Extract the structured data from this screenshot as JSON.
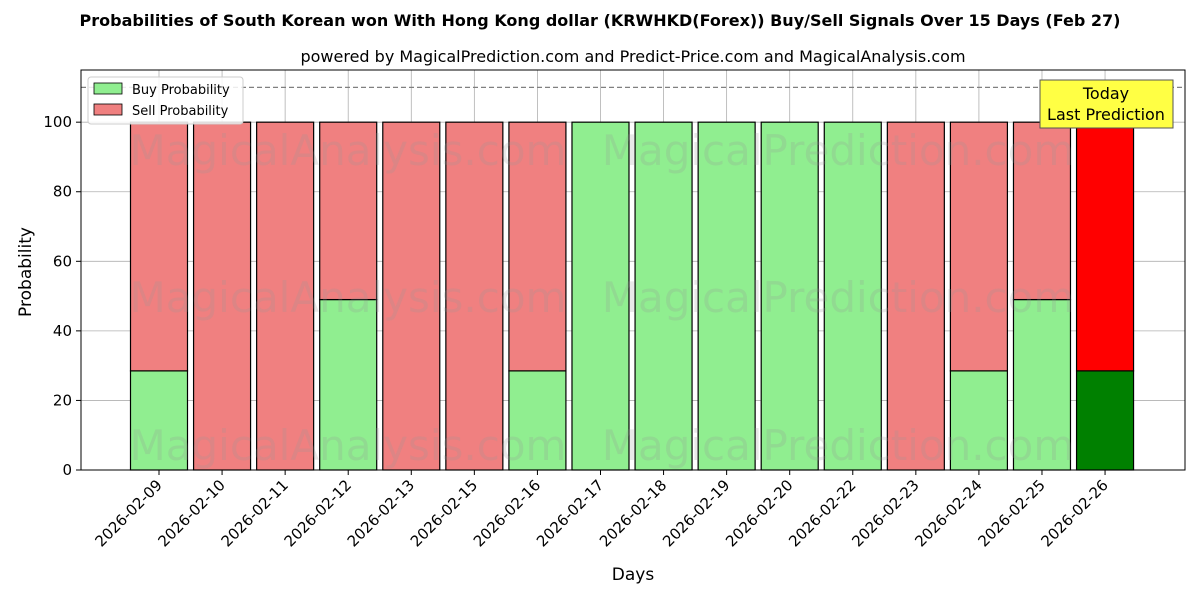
{
  "chart_data": {
    "type": "bar",
    "stacked": true,
    "title": "Probabilities of South Korean won With Hong Kong dollar (KRWHKD(Forex)) Buy/Sell Signals Over 15 Days (Feb 27)",
    "subtitle": "powered by MagicalPrediction.com and Predict-Price.com and MagicalAnalysis.com",
    "xlabel": "Days",
    "ylabel": "Probability",
    "ylim": [
      0,
      115
    ],
    "yticks": [
      0,
      20,
      40,
      60,
      80,
      100
    ],
    "categories": [
      "2026-02-09",
      "2026-02-10",
      "2026-02-11",
      "2026-02-12",
      "2026-02-13",
      "2026-02-15",
      "2026-02-16",
      "2026-02-17",
      "2026-02-18",
      "2026-02-19",
      "2026-02-20",
      "2026-02-22",
      "2026-02-23",
      "2026-02-24",
      "2026-02-25",
      "2026-02-26"
    ],
    "series": [
      {
        "name": "Buy Probability",
        "color": "#90ee90",
        "values": [
          28.5,
          0,
          0,
          49,
          0,
          0,
          28.5,
          100,
          100,
          100,
          100,
          100,
          0,
          28.5,
          49,
          28.5
        ]
      },
      {
        "name": "Sell Probability",
        "color": "#f08080",
        "values": [
          71.5,
          100,
          100,
          51,
          100,
          100,
          71.5,
          0,
          0,
          0,
          0,
          0,
          100,
          71.5,
          51,
          71.5
        ]
      }
    ],
    "highlight": {
      "index": 15,
      "buy_color": "#008000",
      "sell_color": "#ff0000"
    },
    "reference_line": {
      "y": 110,
      "style": "dashed",
      "color": "#808080"
    },
    "legend": {
      "placement": "top-left"
    },
    "annotation": {
      "lines": [
        "Today",
        "Last Prediction"
      ],
      "background": "#ffff44"
    },
    "watermarks": [
      "MagicalAnalysis.com",
      "MagicalPrediction.com"
    ],
    "grid": true
  }
}
